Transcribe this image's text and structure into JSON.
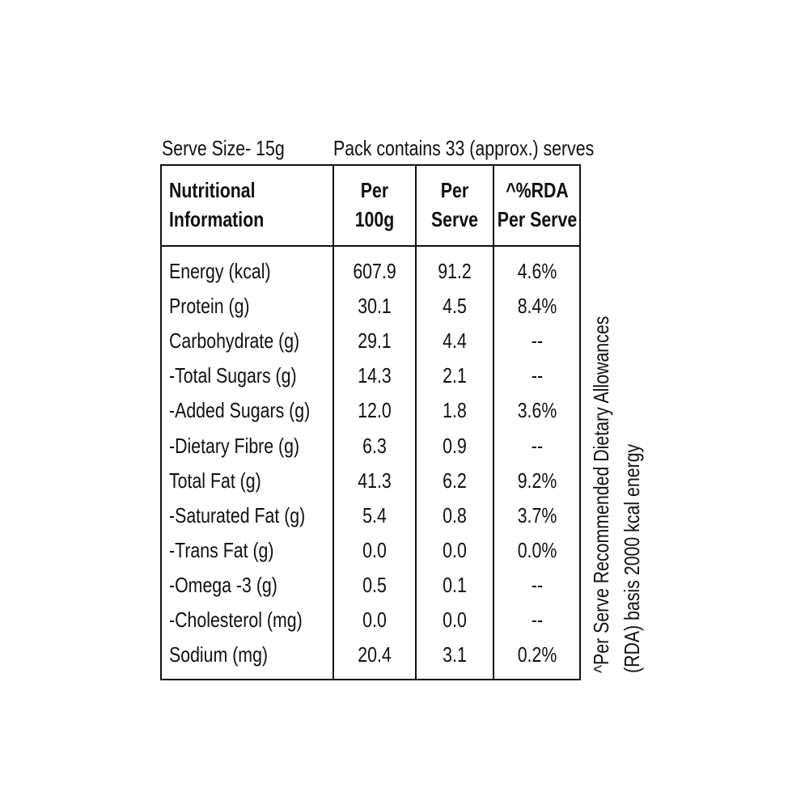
{
  "header": {
    "serve_size": "Serve Size- 15g",
    "pack_info": "Pack contains 33 (approx.) serves"
  },
  "table": {
    "columns": [
      [
        "Nutritional",
        "Information"
      ],
      [
        "Per",
        "100g"
      ],
      [
        "Per",
        "Serve"
      ],
      [
        "^%RDA",
        "Per Serve"
      ]
    ],
    "rows": [
      [
        "Energy (kcal)",
        "607.9",
        "91.2",
        "4.6%"
      ],
      [
        "Protein (g)",
        "30.1",
        "4.5",
        "8.4%"
      ],
      [
        "Carbohydrate (g)",
        "29.1",
        "4.4",
        "--"
      ],
      [
        "-Total Sugars (g)",
        "14.3",
        "2.1",
        "--"
      ],
      [
        "-Added Sugars (g)",
        "12.0",
        "1.8",
        "3.6%"
      ],
      [
        "-Dietary Fibre (g)",
        "6.3",
        "0.9",
        "--"
      ],
      [
        "Total Fat (g)",
        "41.3",
        "6.2",
        "9.2%"
      ],
      [
        "-Saturated Fat (g)",
        "5.4",
        "0.8",
        "3.7%"
      ],
      [
        "-Trans Fat (g)",
        "0.0",
        "0.0",
        "0.0%"
      ],
      [
        "-Omega -3 (g)",
        "0.5",
        "0.1",
        "--"
      ],
      [
        "-Cholesterol (mg)",
        "0.0",
        "0.0",
        "--"
      ],
      [
        "Sodium (mg)",
        "20.4",
        "3.1",
        "0.2%"
      ]
    ]
  },
  "footnote": [
    "^Per Serve Recommended Dietary Allowances",
    "(RDA) basis 2000 kcal energy"
  ]
}
